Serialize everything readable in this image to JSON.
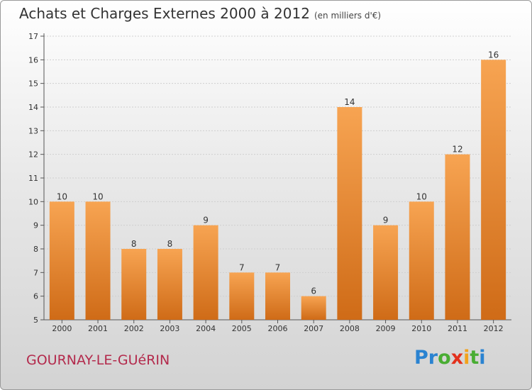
{
  "header": {
    "title": "Achats et Charges Externes 2000 à 2012",
    "unit": "(en milliers d'€)"
  },
  "footer": {
    "place": "GOURNAY-LE-GUéRIN",
    "logo_letters": [
      "P",
      "r",
      "o",
      "x",
      "i",
      "t",
      "i"
    ],
    "logo_colors": [
      "#2a83d1",
      "#2a83d1",
      "#49ad33",
      "#e3311d",
      "#f2a21b",
      "#49ad33",
      "#2a83d1"
    ]
  },
  "colors": {
    "bar_top": "#f7a452",
    "bar_bottom": "#cf6b17",
    "grid": "#cfcfcf"
  },
  "chart_data": {
    "type": "bar",
    "title": "Achats et Charges Externes 2000 à 2012",
    "subtitle": "(en milliers d'€)",
    "categories": [
      "2000",
      "2001",
      "2002",
      "2003",
      "2004",
      "2005",
      "2006",
      "2007",
      "2008",
      "2009",
      "2010",
      "2011",
      "2012"
    ],
    "values": [
      10,
      10,
      8,
      8,
      9,
      7,
      7,
      6,
      14,
      9,
      10,
      12,
      16
    ],
    "ylim": [
      5,
      17
    ],
    "yticks": [
      5,
      6,
      7,
      8,
      9,
      10,
      11,
      12,
      13,
      14,
      15,
      16,
      17
    ],
    "grid": true,
    "xlabel": "",
    "ylabel": ""
  }
}
